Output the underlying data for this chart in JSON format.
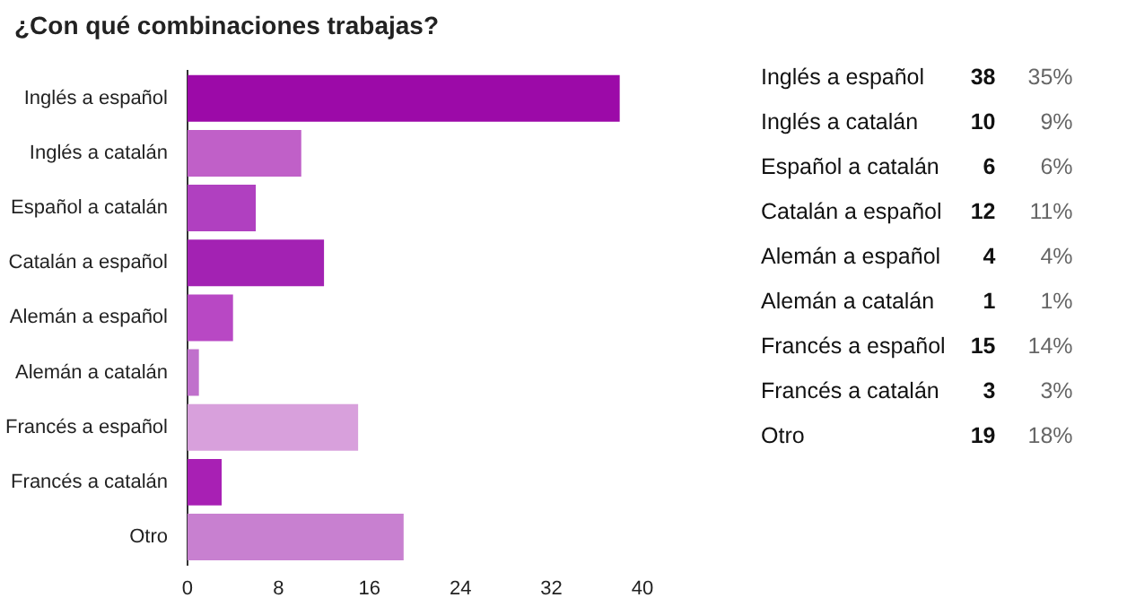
{
  "chart_data": [
    {
      "type": "bar",
      "orientation": "horizontal",
      "title": "¿Con qué combinaciones trabajas?",
      "categories": [
        "Inglés a español",
        "Inglés a catalán",
        "Español a catalán",
        "Catalán a español",
        "Alemán a español",
        "Alemán a catalán",
        "Francés a español",
        "Francés a catalán",
        "Otro"
      ],
      "values": [
        38,
        10,
        6,
        12,
        4,
        1,
        15,
        3,
        19
      ],
      "colors": [
        "#9c0aa8",
        "#c060c8",
        "#b040c0",
        "#a322b3",
        "#b848c4",
        "#c070cc",
        "#d8a0dc",
        "#a820b4",
        "#c880d0"
      ],
      "xlim": [
        0,
        40
      ],
      "xticks": [
        0,
        8,
        16,
        24,
        32,
        40
      ],
      "grid": false,
      "legend": false
    },
    {
      "type": "other",
      "categories": [
        "Inglés a español",
        "Inglés a catalán",
        "Español a catalán",
        "Catalán a español",
        "Alemán a español",
        "Alemán a catalán",
        "Francés a español",
        "Francés a catalán",
        "Otro"
      ],
      "values": [
        38,
        10,
        6,
        12,
        4,
        1,
        15,
        3,
        19
      ],
      "data_labels": true,
      "annotations": [
        "35%",
        "9%",
        "6%",
        "11%",
        "4%",
        "1%",
        "14%",
        "3%",
        "18%"
      ]
    }
  ]
}
